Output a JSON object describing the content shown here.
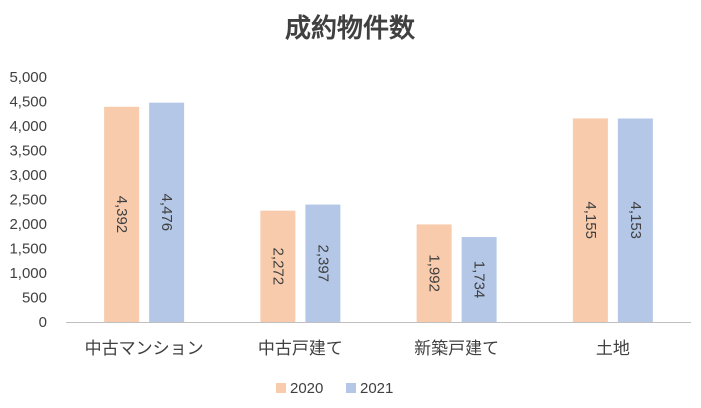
{
  "chart_data": {
    "type": "bar",
    "title": "成約物件数",
    "categories": [
      "中古マンション",
      "中古戸建て",
      "新築戸建て",
      "土地"
    ],
    "series": [
      {
        "name": "2020",
        "values": [
          4392,
          2272,
          1992,
          4155
        ],
        "labels": [
          "4,392",
          "2,272",
          "1,992",
          "4,155"
        ],
        "color": "#F8CBAD"
      },
      {
        "name": "2021",
        "values": [
          4476,
          2397,
          1734,
          4153
        ],
        "labels": [
          "4,476",
          "2,397",
          "1,734",
          "4,153"
        ],
        "color": "#B4C7E7"
      }
    ],
    "yticks": [
      "0",
      "500",
      "1,000",
      "1,500",
      "2,000",
      "2,500",
      "3,000",
      "3,500",
      "4,000",
      "4,500",
      "5,000"
    ],
    "ylim": [
      0,
      5000
    ],
    "xlabel": "",
    "ylabel": "",
    "grid": false,
    "legend_position": "bottom",
    "data_label_orientation": "vertical"
  }
}
